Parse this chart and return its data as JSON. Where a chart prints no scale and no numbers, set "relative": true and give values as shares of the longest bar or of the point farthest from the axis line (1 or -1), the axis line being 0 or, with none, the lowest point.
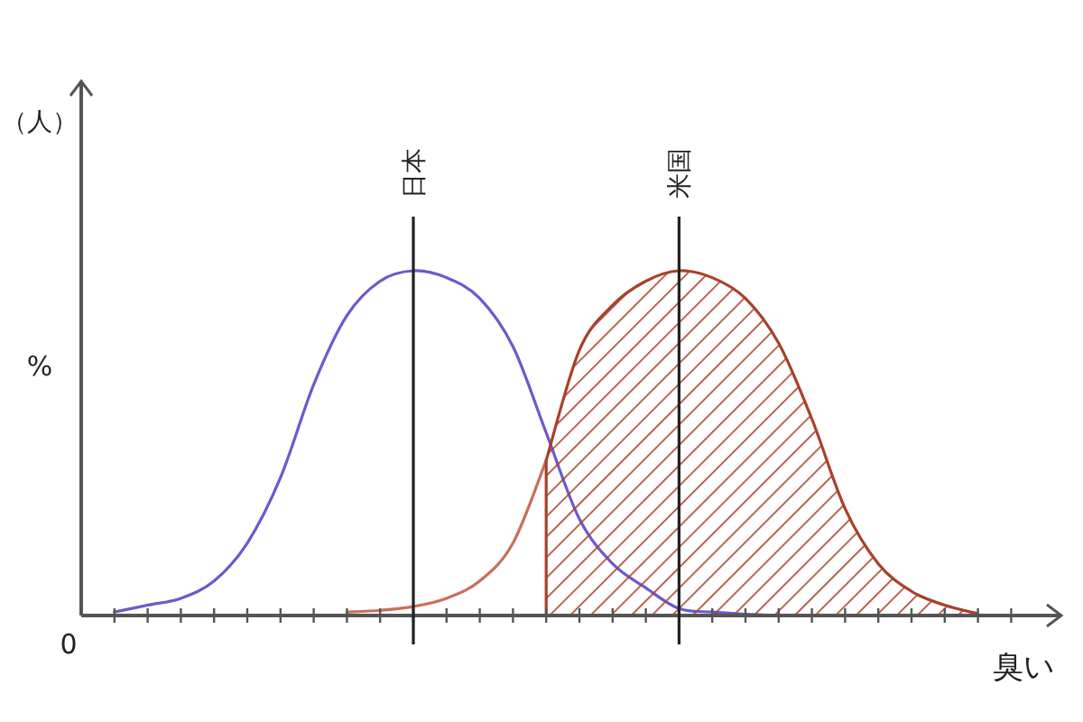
{
  "chart_data": {
    "type": "line",
    "relative": true,
    "xlabel": "臭い",
    "ylabel": "%",
    "annotations": [
      "（人）",
      "0",
      "日本",
      "米国"
    ],
    "categories": [
      null,
      null,
      null,
      null,
      null,
      null,
      null,
      null,
      null,
      null,
      null,
      null,
      null,
      null,
      null,
      null,
      null,
      null,
      null,
      null,
      null,
      null,
      null,
      null,
      null,
      null,
      null,
      null,
      null
    ],
    "series": [
      {
        "color": "#6a5acd",
        "values": [
          null,
          0.01,
          0.03,
          0.05,
          0.1,
          0.21,
          0.4,
          0.67,
          0.87,
          0.97,
          1,
          0.98,
          0.92,
          0.78,
          0.53,
          0.28,
          0.15,
          0.08,
          0.02,
          0.01,
          0.004,
          0,
          null,
          null,
          null,
          null,
          null,
          null,
          null
        ]
      },
      {
        "color": "#c8705a",
        "values": [
          null,
          null,
          null,
          null,
          null,
          null,
          null,
          null,
          0.01,
          0.015,
          0.026,
          0.05,
          0.1,
          0.21,
          0.45,
          null,
          null,
          null,
          null,
          null,
          null,
          null,
          null,
          null,
          null,
          null,
          null,
          null,
          null
        ]
      },
      {
        "type": "area",
        "color": "#a8402a",
        "values": [
          null,
          null,
          null,
          null,
          null,
          null,
          null,
          null,
          null,
          null,
          null,
          null,
          null,
          null,
          0.45,
          0.77,
          0.9,
          0.97,
          1,
          0.98,
          0.92,
          0.79,
          0.57,
          0.31,
          0.15,
          0.07,
          0.03,
          0.005,
          null
        ]
      }
    ]
  }
}
